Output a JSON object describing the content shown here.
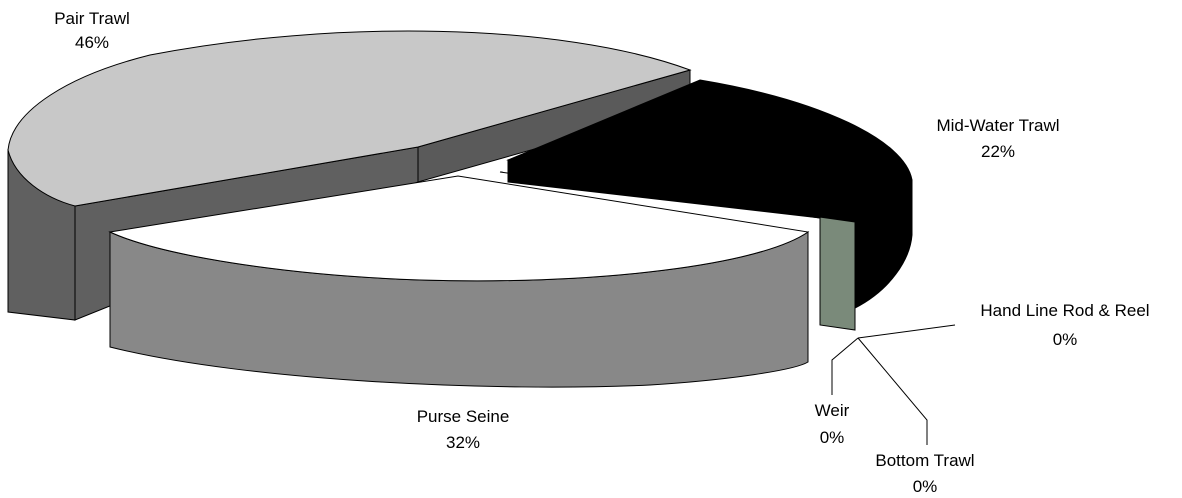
{
  "chart_data": {
    "type": "pie",
    "title": "",
    "style": "3d-exploded",
    "legend": "none",
    "slices": [
      {
        "label": "Pair Trawl",
        "value_text": "46%",
        "value": 46,
        "color": "#c8c8c8",
        "side_color": "#606060"
      },
      {
        "label": "Mid-Water Trawl",
        "value_text": "22%",
        "value": 22,
        "color": "#000000",
        "side_color": "#000000"
      },
      {
        "label": "Hand Line Rod & Reel",
        "value_text": "0%",
        "value": 0,
        "color": "#808080",
        "side_color": "#7a8a7a"
      },
      {
        "label": "Bottom Trawl",
        "value_text": "0%",
        "value": 0,
        "color": "#ffffff",
        "side_color": "#ffffff"
      },
      {
        "label": "Weir",
        "value_text": "0%",
        "value": 0,
        "color": "#ffffff",
        "side_color": "#ffffff"
      },
      {
        "label": "Purse Seine",
        "value_text": "32%",
        "value": 32,
        "color": "#ffffff",
        "side_color": "#888888"
      }
    ]
  }
}
